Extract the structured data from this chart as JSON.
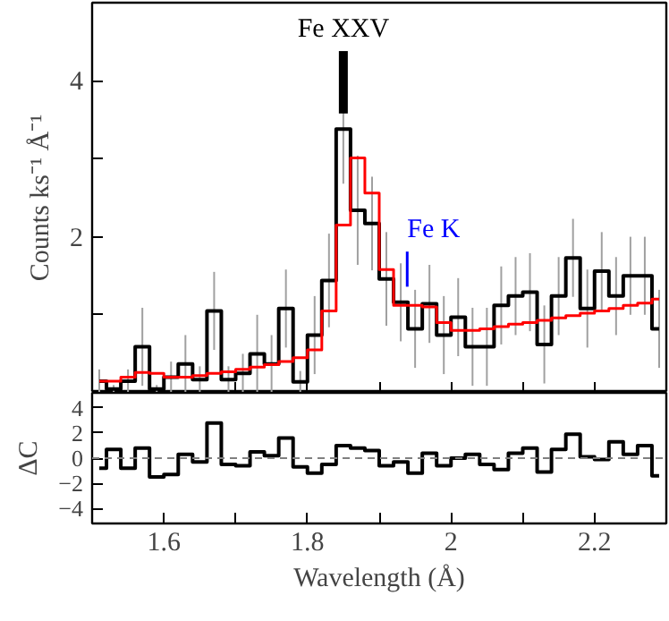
{
  "chart_data": [
    {
      "type": "step",
      "ylabel": "Counts ks⁻¹ Å⁻¹",
      "x": [
        1.51,
        1.53,
        1.55,
        1.57,
        1.59,
        1.61,
        1.63,
        1.65,
        1.67,
        1.69,
        1.71,
        1.73,
        1.75,
        1.77,
        1.79,
        1.81,
        1.83,
        1.85,
        1.87,
        1.89,
        1.91,
        1.93,
        1.95,
        1.97,
        1.99,
        2.01,
        2.03,
        2.05,
        2.07,
        2.09,
        2.11,
        2.13,
        2.15,
        2.17,
        2.19,
        2.21,
        2.23,
        2.25,
        2.27,
        2.29
      ],
      "series": [
        {
          "color": "#000000",
          "values": [
            0.15,
            0.05,
            0.15,
            0.59,
            0.05,
            0.2,
            0.37,
            0.17,
            1.05,
            0.17,
            0.25,
            0.5,
            0.37,
            1.08,
            0.14,
            0.74,
            1.44,
            3.38,
            2.34,
            2.17,
            1.46,
            1.16,
            0.82,
            1.14,
            0.74,
            0.97,
            0.59,
            0.59,
            1.12,
            1.24,
            1.29,
            0.62,
            1.24,
            1.73,
            1.08,
            1.56,
            1.24,
            1.5,
            1.5,
            0.82
          ],
          "errors": [
            0.15,
            0.05,
            0.15,
            0.5,
            0.05,
            0.2,
            0.37,
            0.17,
            0.5,
            0.17,
            0.25,
            0.5,
            0.37,
            0.5,
            0.14,
            0.5,
            0.6,
            0.7,
            0.7,
            0.6,
            0.6,
            0.5,
            0.5,
            0.5,
            0.5,
            0.5,
            0.5,
            0.5,
            0.5,
            0.5,
            0.5,
            0.5,
            0.5,
            0.5,
            0.5,
            0.5,
            0.5,
            0.5,
            0.5,
            0.5
          ]
        },
        {
          "color": "#ff0000",
          "values": [
            0.15,
            0.15,
            0.2,
            0.26,
            0.25,
            0.2,
            0.2,
            0.22,
            0.25,
            0.27,
            0.3,
            0.33,
            0.36,
            0.4,
            0.45,
            0.55,
            1.05,
            2.15,
            3.01,
            2.56,
            1.58,
            1.12,
            1.12,
            1.1,
            0.9,
            0.8,
            0.8,
            0.82,
            0.85,
            0.88,
            0.9,
            0.93,
            0.96,
            0.99,
            1.02,
            1.05,
            1.08,
            1.12,
            1.15,
            1.2
          ]
        }
      ],
      "xlim": [
        1.5,
        2.3
      ],
      "xticks": [
        1.6,
        {
          "value": 1.7,
          "label": null
        },
        1.8,
        {
          "value": 1.9,
          "label": null
        },
        2,
        {
          "value": 2.1,
          "label": null
        },
        2.2
      ],
      "ylim": [
        0,
        5.0
      ],
      "yticks": [
        {
          "value": 1,
          "label": null
        },
        2,
        {
          "value": 3,
          "label": null
        },
        4
      ],
      "tick_labels": "y",
      "annotations": [
        {
          "text": "Fe XXV",
          "x": 1.85,
          "y": 3.58
        },
        {
          "text": "Fe K",
          "x": 1.939,
          "y": 1.36
        }
      ]
    },
    {
      "type": "step",
      "ylabel": "ΔC",
      "xlabel": "Wavelength (Å)",
      "x": [
        1.51,
        1.53,
        1.55,
        1.57,
        1.59,
        1.61,
        1.63,
        1.65,
        1.67,
        1.69,
        1.71,
        1.73,
        1.75,
        1.77,
        1.79,
        1.81,
        1.83,
        1.85,
        1.87,
        1.89,
        1.91,
        1.93,
        1.95,
        1.97,
        1.99,
        2.01,
        2.03,
        2.05,
        2.07,
        2.09,
        2.11,
        2.13,
        2.15,
        2.17,
        2.19,
        2.21,
        2.23,
        2.25,
        2.27,
        2.29
      ],
      "series": [
        {
          "color": "#000000",
          "values": [
            -0.8,
            0.7,
            -0.8,
            0.8,
            -1.5,
            -1.3,
            0.3,
            -0.3,
            2.8,
            -0.5,
            -0.6,
            0.5,
            0.2,
            1.6,
            -0.7,
            -1.2,
            -0.5,
            1.0,
            0.8,
            0.6,
            -0.6,
            -0.3,
            -1.2,
            0.4,
            -0.6,
            0,
            0.3,
            -0.5,
            -0.9,
            0.4,
            0.8,
            -1.1,
            0.7,
            1.9,
            0.1,
            -0.1,
            1.3,
            0.3,
            1.0,
            -1.4
          ]
        }
      ],
      "xlim": [
        1.5,
        2.3
      ],
      "xticks": [
        1.6,
        {
          "value": 1.7,
          "label": null
        },
        1.8,
        {
          "value": 1.9,
          "label": null
        },
        2,
        {
          "value": 2.1,
          "label": null
        },
        2.2
      ],
      "ylim": [
        -5.2,
        5.2
      ],
      "yticks": [
        {
          "value": -4,
          "label": "−4"
        },
        {
          "value": -2,
          "label": "−2"
        },
        0,
        2,
        4
      ],
      "ref_lines": [
        {
          "axis": "y",
          "value": 0,
          "color": "#808080",
          "line_style": "dashed"
        }
      ]
    }
  ]
}
